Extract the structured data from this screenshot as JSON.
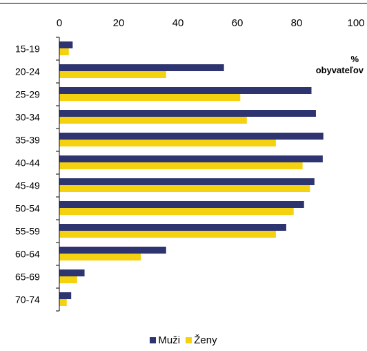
{
  "chart_data": {
    "type": "bar",
    "orientation": "horizontal",
    "categories": [
      "15-19",
      "20-24",
      "25-29",
      "30-34",
      "35-39",
      "40-44",
      "45-49",
      "50-54",
      "55-59",
      "60-64",
      "65-69",
      "70-74"
    ],
    "series": [
      {
        "name": "Muži",
        "color": "#2e3470",
        "values": [
          4.5,
          55.5,
          85,
          86.5,
          89,
          88.8,
          86,
          82.5,
          76.5,
          36,
          8.5,
          4
        ]
      },
      {
        "name": "Ženy",
        "color": "#f5d20f",
        "values": [
          3.2,
          36,
          61,
          63.2,
          73,
          82,
          84.5,
          79,
          73,
          27.5,
          6,
          2.5
        ]
      }
    ],
    "xlim": [
      0,
      100
    ],
    "xticks": [
      "0",
      "20",
      "40",
      "60",
      "80",
      "100"
    ],
    "unit_label": "% obyvateľov",
    "unit_label_lines": [
      "%",
      "obyvateľov"
    ],
    "legend_position": "bottom",
    "grid": false
  }
}
